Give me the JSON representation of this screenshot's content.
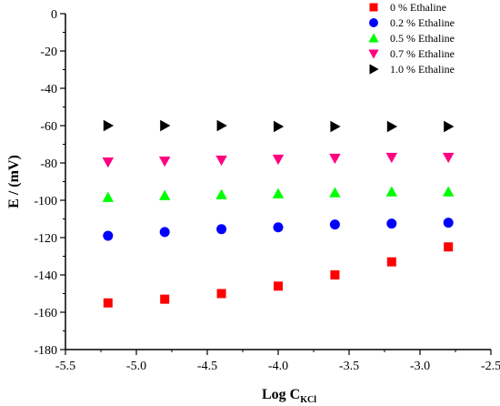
{
  "chart_data": {
    "type": "scatter",
    "xlabel": "Log C",
    "xlabel_sub": "KCl",
    "ylabel": "E / (mV)",
    "xlim": [
      -5.5,
      -2.5
    ],
    "ylim": [
      -180,
      0
    ],
    "xticks": [
      -5.5,
      -5.0,
      -4.5,
      -4.0,
      -3.5,
      -3.0,
      -2.5
    ],
    "xtick_labels": [
      "-5.5",
      "-5.0",
      "-4.5",
      "-4.0",
      "-3.5",
      "-3.0",
      "-2.5"
    ],
    "yticks": [
      0,
      -20,
      -40,
      -60,
      -80,
      -100,
      -120,
      -140,
      -160,
      -180
    ],
    "ytick_labels": [
      "0",
      "-20",
      "-40",
      "-60",
      "-80",
      "-100",
      "-120",
      "-140",
      "-160",
      "-180"
    ],
    "grid": false,
    "legend_position": "top-right",
    "x": [
      -5.2,
      -4.8,
      -4.4,
      -4.0,
      -3.6,
      -3.2,
      -2.8
    ],
    "series": [
      {
        "name": "0 % Ethaline",
        "marker": "square",
        "color": "#ff0000",
        "values": [
          -155,
          -153,
          -150,
          -146,
          -140,
          -133,
          -125
        ]
      },
      {
        "name": "0.2 % Ethaline",
        "marker": "circle",
        "color": "#0000ff",
        "values": [
          -119,
          -117,
          -115.5,
          -114.5,
          -113,
          -112.5,
          -112
        ]
      },
      {
        "name": "0.5 % Ethaline",
        "marker": "triangle-up",
        "color": "#00ff00",
        "values": [
          -98.5,
          -97.5,
          -97,
          -96.5,
          -96,
          -95.5,
          -95.5
        ]
      },
      {
        "name": "0.7 % Ethaline",
        "marker": "triangle-down",
        "color": "#ff0080",
        "values": [
          -79.5,
          -79,
          -78.5,
          -78,
          -77.5,
          -77,
          -77
        ]
      },
      {
        "name": "1.0 % Ethaline",
        "marker": "triangle-right",
        "color": "#000000",
        "values": [
          -60,
          -60,
          -60,
          -60.5,
          -60.5,
          -60.5,
          -60.5
        ]
      }
    ]
  }
}
